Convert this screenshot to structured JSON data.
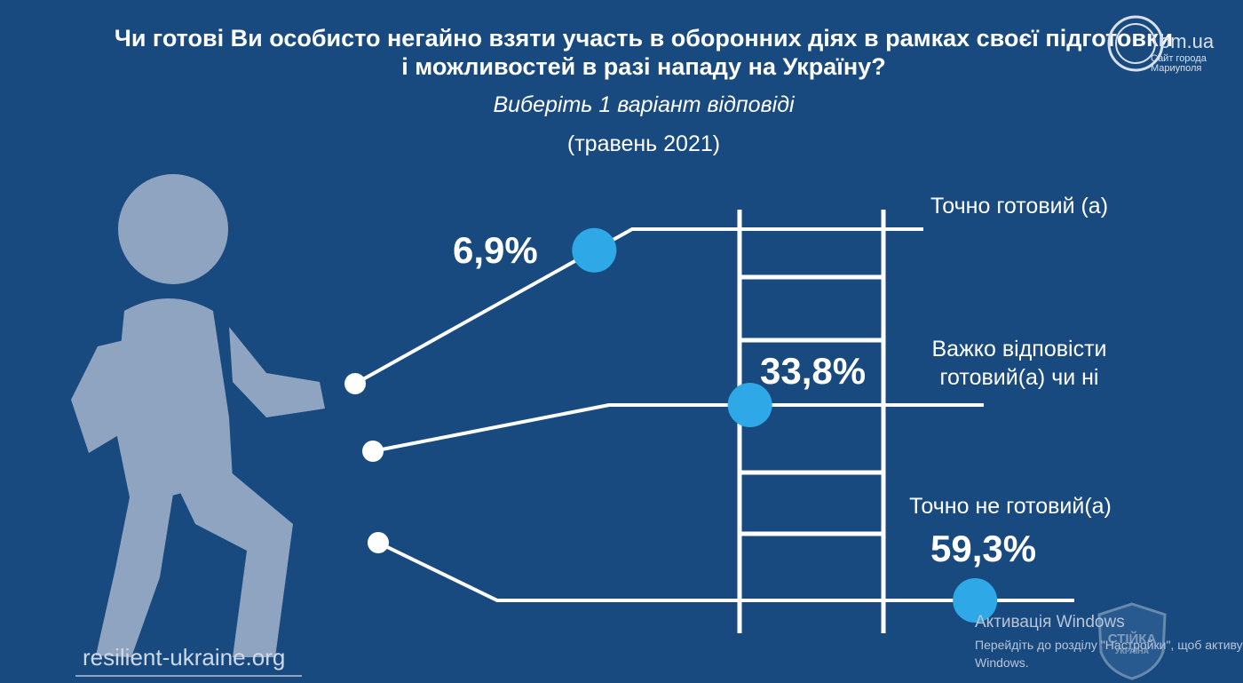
{
  "chart_data": {
    "type": "bar",
    "title_line1": "Чи готові Ви особисто негайно взяти участь в оборонних діях в рамках своєї підготовки",
    "title_line2": "і можливостей в разі нападу на Україну?",
    "subtitle": "Виберіть 1 варіант відповіді",
    "period": "(травень 2021)",
    "categories": [
      "Точно готовий (а)",
      "Важко відповісти готовий(а) чи ні",
      "Точно не готовий(а)"
    ],
    "label_lines": [
      [
        "Точно готовий (а)"
      ],
      [
        "Важко відповісти",
        "готовий(а) чи ні"
      ],
      [
        "Точно не готовий(а)"
      ]
    ],
    "values": [
      6.9,
      33.8,
      59.3
    ],
    "value_labels": [
      "6,9%",
      "33,8%",
      "59,3%"
    ],
    "unit": "%",
    "colors": {
      "background": "#184a80",
      "line": "#ffffff",
      "marker": "#2ea8e6",
      "figure": "#8fa4c0"
    }
  },
  "footer": {
    "source": "resilient-ukraine.org"
  },
  "watermark": {
    "domain": "0629.com.ua",
    "domain_visible": "om.ua",
    "tagline_line1": "Сайт города",
    "tagline_line2": "Мариуполя",
    "badge_text_1": "СТІЙКА",
    "badge_text_2": "УКРАЇНА"
  },
  "windows_notice": {
    "line1": "Активація Windows",
    "line2": "Перейдіть до розділу \"Настройки\", щоб активувати",
    "line3": "Windows."
  }
}
